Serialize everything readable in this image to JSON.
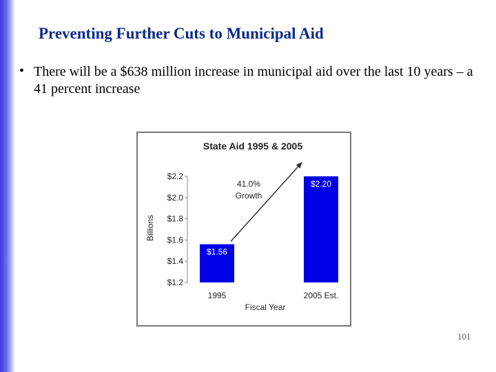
{
  "slide": {
    "title": "Preventing Further Cuts to Municipal Aid",
    "bullet_symbol": "•",
    "bullet_text": "There will be a $638 million increase in municipal aid over the last 10 years – a 41 percent increase",
    "page_number": "101"
  },
  "colors": {
    "bar": "#0000e6",
    "title": "#0a2a8a",
    "arrow": "#333333"
  },
  "chart_data": {
    "type": "bar",
    "title": "State Aid 1995 & 2005",
    "categories": [
      "1995",
      "2005 Est."
    ],
    "values": [
      1.56,
      2.2
    ],
    "value_labels": [
      "$1.56",
      "$2.20"
    ],
    "xlabel": "Fiscal Year",
    "ylabel": "Billions",
    "ylim": [
      1.2,
      2.2
    ],
    "yticks": [
      1.2,
      1.4,
      1.6,
      1.8,
      2.0,
      2.2
    ],
    "ytick_labels": [
      "$1.2",
      "$1.4",
      "$1.6",
      "$1.8",
      "$2.0",
      "$2.2"
    ],
    "grid": false,
    "annotation": {
      "lines": [
        "41.0%",
        "Growth"
      ],
      "arrow_from_category": "1995",
      "arrow_to_category": "2005 Est."
    }
  }
}
